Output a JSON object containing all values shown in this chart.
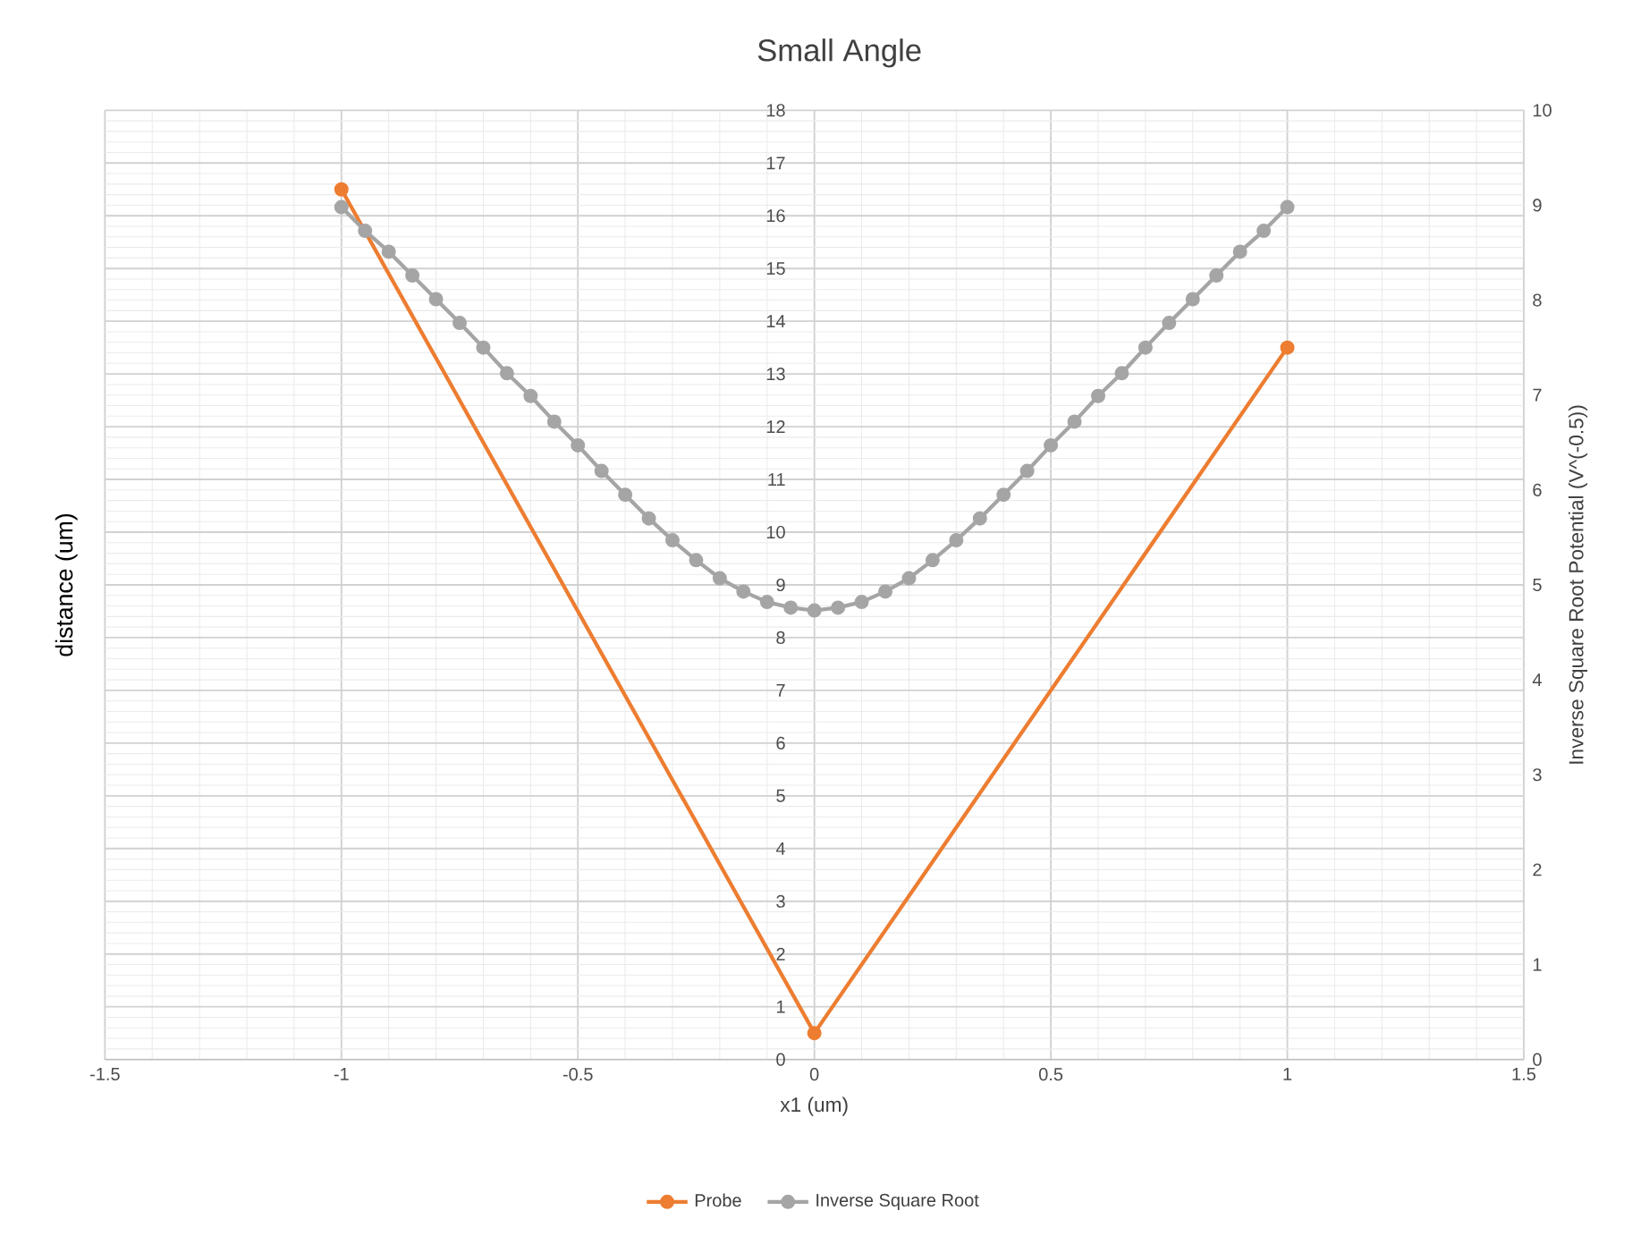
{
  "chart_data": {
    "type": "line",
    "title": "Small Angle",
    "xlabel": "x1 (um)",
    "ylabel": "distance (um)",
    "y2label": "Inverse Square Root Potential (V^(-0.5))",
    "xlim": [
      -1.5,
      1.5
    ],
    "xticks": [
      -1.5,
      -1,
      -0.5,
      0,
      0.5,
      1,
      1.5
    ],
    "ylim": [
      0,
      18
    ],
    "yticks": [
      0,
      1,
      2,
      3,
      4,
      5,
      6,
      7,
      8,
      9,
      10,
      11,
      12,
      13,
      14,
      15,
      16,
      17,
      18
    ],
    "y2lim": [
      0,
      10
    ],
    "y2ticks": [
      0,
      1,
      2,
      3,
      4,
      5,
      6,
      7,
      8,
      9,
      10
    ],
    "grid": true,
    "legend": "bottom",
    "marker": "circle",
    "line_style": "solid",
    "series": [
      {
        "name": "Probe",
        "color": "#ed7d31",
        "x": [
          -1,
          0,
          1
        ],
        "values": [
          16.5,
          0.5,
          13.5
        ]
      },
      {
        "name": "Inverse Square Root",
        "color": "#a5a5a5",
        "axis": "y2",
        "x": [
          -1,
          -0.95,
          -0.9,
          -0.85,
          -0.8,
          -0.75,
          -0.7,
          -0.65,
          -0.6,
          -0.55,
          -0.5,
          -0.45,
          -0.4,
          -0.35,
          -0.3,
          -0.25,
          -0.2,
          -0.15,
          -0.1,
          -0.05,
          0,
          0.05,
          0.1,
          0.15,
          0.2,
          0.25,
          0.3,
          0.35,
          0.4,
          0.45,
          0.5,
          0.55,
          0.6,
          0.65,
          0.7,
          0.75,
          0.8,
          0.85,
          0.9,
          0.95,
          1
        ],
        "values": [
          8.98,
          8.73,
          8.51,
          8.26,
          8.01,
          7.76,
          7.5,
          7.23,
          6.99,
          6.72,
          6.47,
          6.2,
          5.95,
          5.7,
          5.47,
          5.26,
          5.07,
          4.93,
          4.82,
          4.76,
          4.73,
          4.76,
          4.82,
          4.93,
          5.07,
          5.26,
          5.47,
          5.7,
          5.95,
          6.2,
          6.47,
          6.72,
          6.99,
          7.23,
          7.5,
          7.76,
          8.01,
          8.26,
          8.51,
          8.73,
          8.98
        ]
      }
    ]
  }
}
